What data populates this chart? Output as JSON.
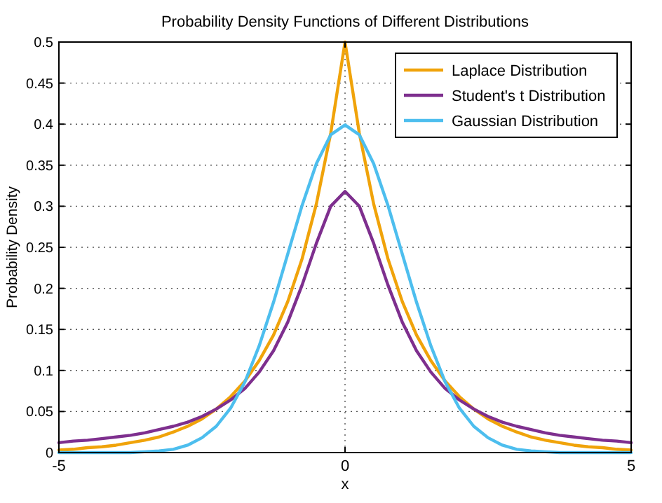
{
  "chart_data": {
    "type": "line",
    "title": "Probability Density Functions of Different Distributions",
    "xlabel": "x",
    "ylabel": "Probability Density",
    "x": [
      -5,
      -4.75,
      -4.5,
      -4.25,
      -4,
      -3.75,
      -3.5,
      -3.25,
      -3,
      -2.75,
      -2.5,
      -2.25,
      -2,
      -1.75,
      -1.5,
      -1.25,
      -1,
      -0.75,
      -0.5,
      -0.25,
      0,
      0.25,
      0.5,
      0.75,
      1,
      1.25,
      1.5,
      1.75,
      2,
      2.25,
      2.5,
      2.75,
      3,
      3.25,
      3.5,
      3.75,
      4,
      4.25,
      4.5,
      4.75,
      5
    ],
    "series": [
      {
        "name": "Laplace Distribution",
        "color": "#f0a30a",
        "values": [
          0.003,
          0.004,
          0.006,
          0.007,
          0.009,
          0.012,
          0.015,
          0.019,
          0.025,
          0.032,
          0.041,
          0.053,
          0.068,
          0.087,
          0.112,
          0.143,
          0.184,
          0.236,
          0.303,
          0.389,
          0.5,
          0.389,
          0.303,
          0.236,
          0.184,
          0.143,
          0.112,
          0.087,
          0.068,
          0.053,
          0.041,
          0.032,
          0.025,
          0.019,
          0.015,
          0.012,
          0.009,
          0.007,
          0.006,
          0.004,
          0.003
        ]
      },
      {
        "name": "Student's t Distribution",
        "color": "#7e2f8e",
        "values": [
          0.012,
          0.014,
          0.015,
          0.017,
          0.019,
          0.021,
          0.024,
          0.028,
          0.032,
          0.037,
          0.044,
          0.053,
          0.064,
          0.078,
          0.098,
          0.124,
          0.159,
          0.204,
          0.255,
          0.3,
          0.318,
          0.3,
          0.255,
          0.204,
          0.159,
          0.124,
          0.098,
          0.078,
          0.064,
          0.053,
          0.044,
          0.037,
          0.032,
          0.028,
          0.024,
          0.021,
          0.019,
          0.017,
          0.015,
          0.014,
          0.012
        ]
      },
      {
        "name": "Gaussian Distribution",
        "color": "#4dbeee",
        "values": [
          0,
          0,
          0,
          0,
          0,
          0,
          0.001,
          0.002,
          0.004,
          0.009,
          0.018,
          0.032,
          0.054,
          0.086,
          0.13,
          0.183,
          0.242,
          0.301,
          0.352,
          0.387,
          0.399,
          0.387,
          0.352,
          0.301,
          0.242,
          0.183,
          0.13,
          0.086,
          0.054,
          0.032,
          0.018,
          0.009,
          0.004,
          0.002,
          0.001,
          0,
          0,
          0,
          0,
          0,
          0
        ]
      }
    ],
    "xlim": [
      -5,
      5
    ],
    "xticks": [
      -5,
      0,
      5
    ],
    "ylim": [
      0,
      0.5
    ],
    "yticks": [
      0,
      0.05,
      0.1,
      0.15,
      0.2,
      0.25,
      0.3,
      0.35,
      0.4,
      0.45,
      0.5
    ],
    "grid": true,
    "legend": "top right",
    "line_style": "solid"
  }
}
